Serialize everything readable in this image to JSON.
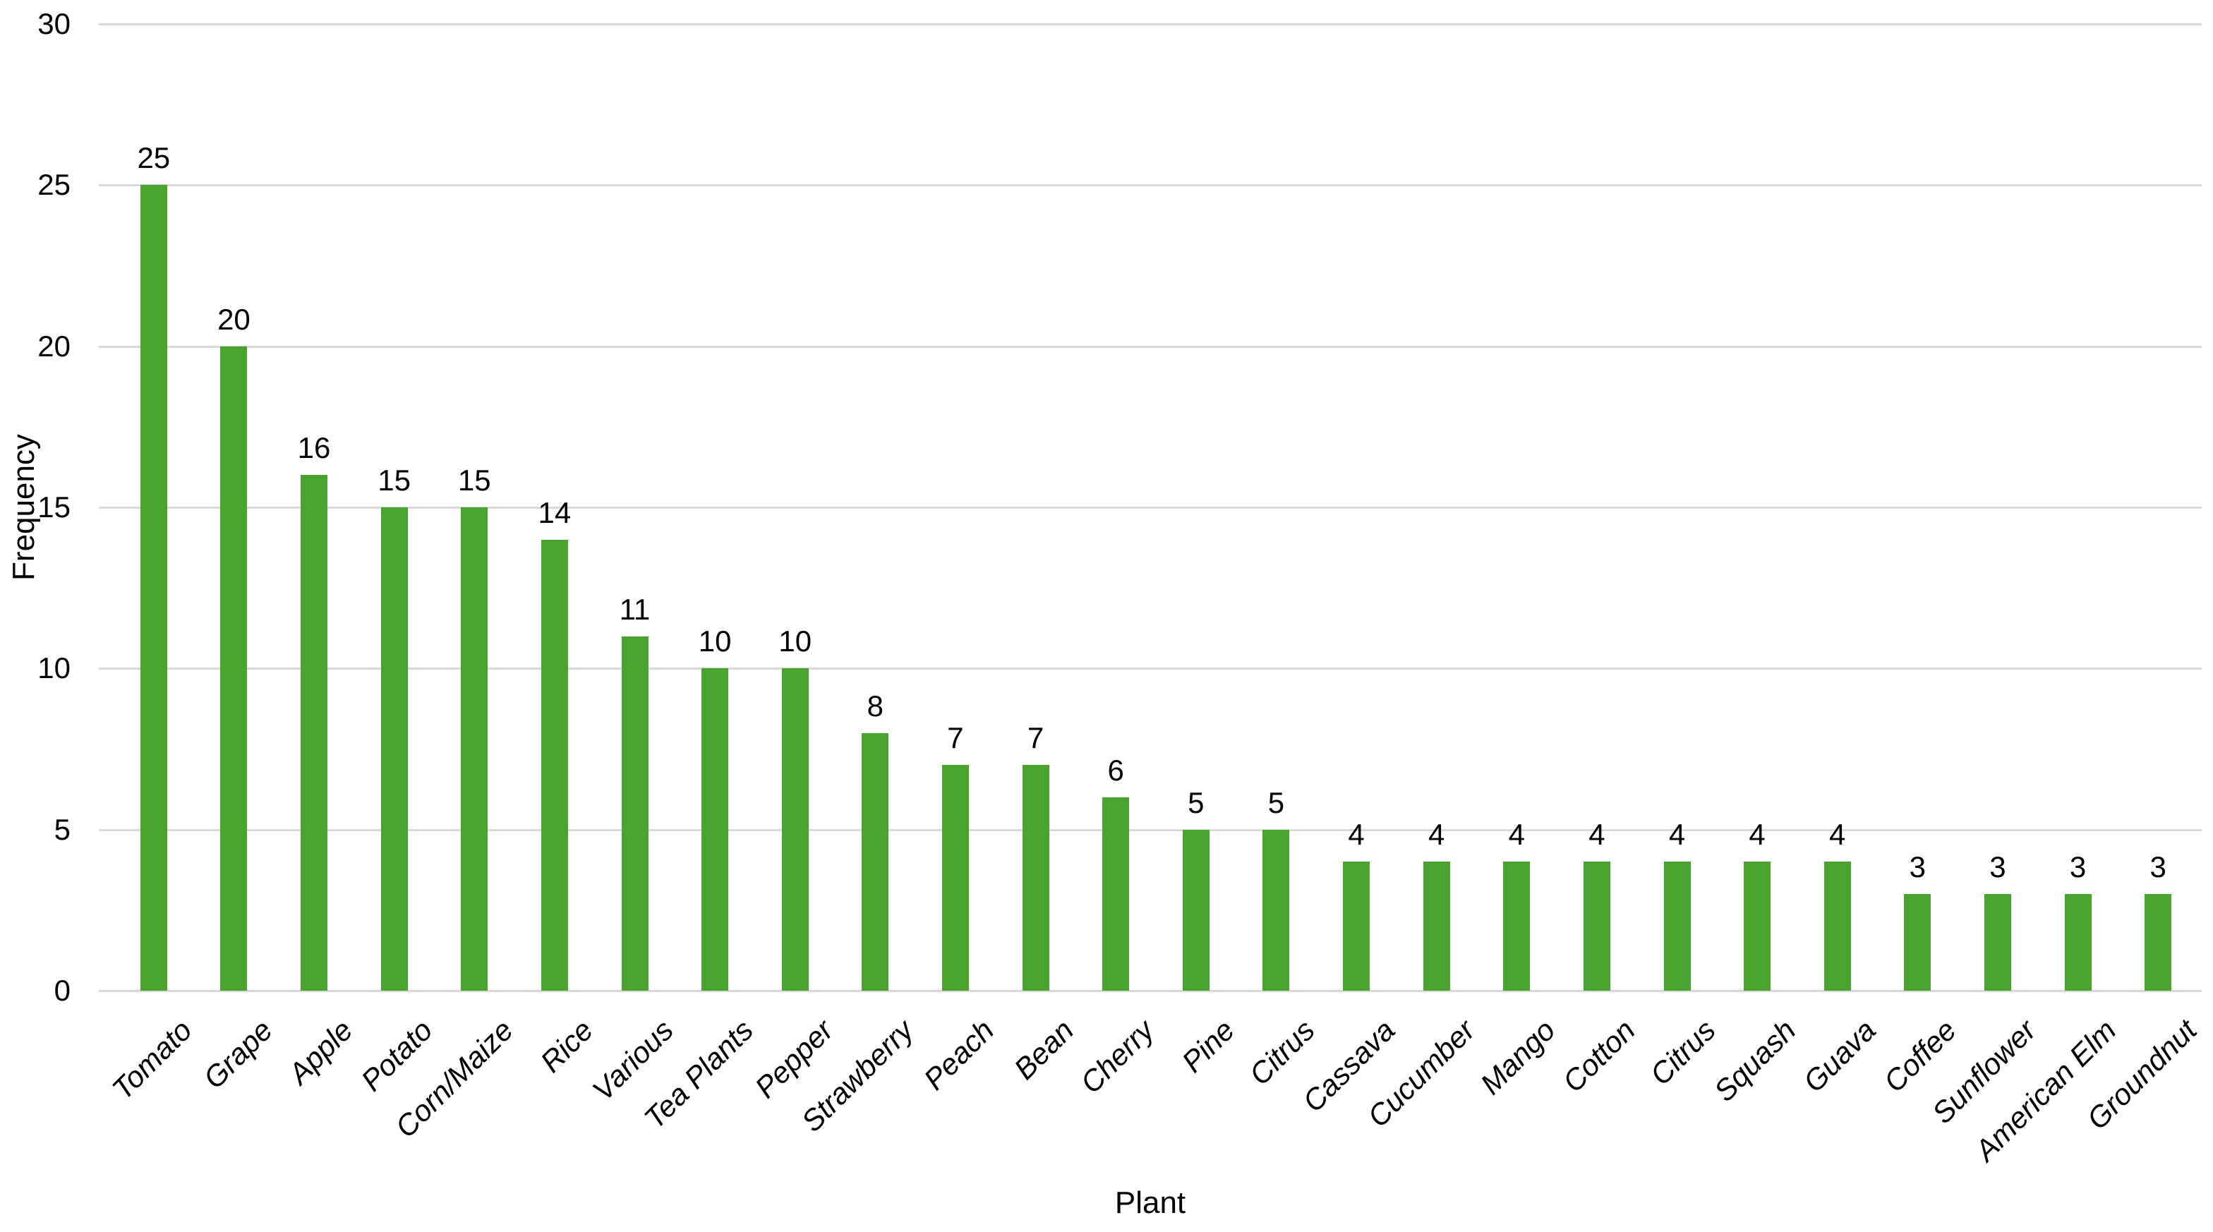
{
  "chart": {
    "xlabel": "Plant",
    "ylabel": "Frequency"
  },
  "chart_data": {
    "type": "bar",
    "title": "",
    "xlabel": "Plant",
    "ylabel": "Frequency",
    "categories": [
      "Tomato",
      "Grape",
      "Apple",
      "Potato",
      "Corn/Maize",
      "Rice",
      "Various",
      "Tea Plants",
      "Pepper",
      "Strawberry",
      "Peach",
      "Bean",
      "Cherry",
      "Pine",
      "Citrus",
      "Cassava",
      "Cucumber",
      "Mango",
      "Cotton",
      "Citrus",
      "Squash",
      "Guava",
      "Coffee",
      "Sunflower",
      "American Elm",
      "Groundnut"
    ],
    "values": [
      25,
      20,
      16,
      15,
      15,
      14,
      11,
      10,
      10,
      8,
      7,
      7,
      6,
      5,
      5,
      4,
      4,
      4,
      4,
      4,
      4,
      4,
      3,
      3,
      3,
      3
    ],
    "ylim": [
      0,
      30
    ],
    "yticks": [
      0,
      5,
      10,
      15,
      20,
      25,
      30
    ],
    "grid": "horizontal",
    "legend": "none",
    "data_labels": true,
    "bar_color": "#4aa32f",
    "gridline_color": "#d9d9d9",
    "label_color": "#000000"
  }
}
